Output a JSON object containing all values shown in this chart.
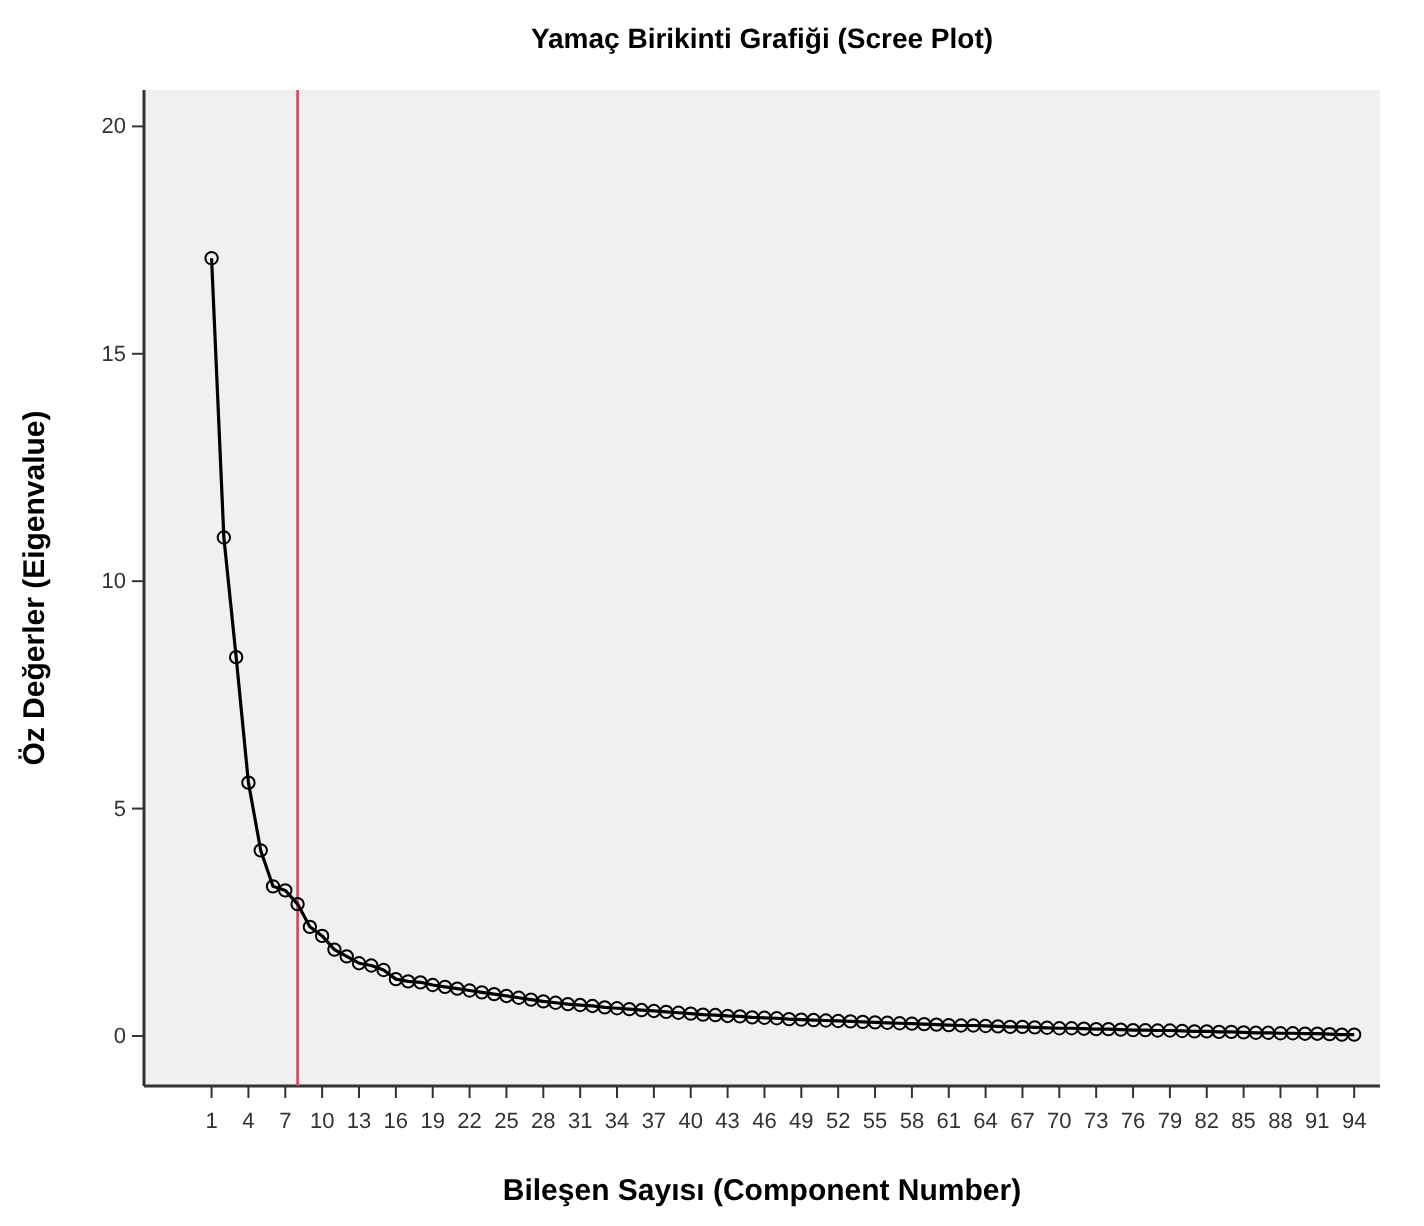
{
  "chart_data": {
    "type": "line",
    "title": "Yamaç Birikinti Grafiği (Scree Plot)",
    "xlabel": "Bileşen Sayısı (Component Number)",
    "ylabel": "Öz Değerler (Eigenvalue)",
    "x": [
      1,
      2,
      3,
      4,
      5,
      6,
      7,
      8,
      9,
      10,
      11,
      12,
      13,
      14,
      15,
      16,
      17,
      18,
      19,
      20,
      21,
      22,
      23,
      24,
      25,
      26,
      27,
      28,
      29,
      30,
      31,
      32,
      33,
      34,
      35,
      36,
      37,
      38,
      39,
      40,
      41,
      42,
      43,
      44,
      45,
      46,
      47,
      48,
      49,
      50,
      51,
      52,
      53,
      54,
      55,
      56,
      57,
      58,
      59,
      60,
      61,
      62,
      63,
      64,
      65,
      66,
      67,
      68,
      69,
      70,
      71,
      72,
      73,
      74,
      75,
      76,
      77,
      78,
      79,
      80,
      81,
      82,
      83,
      84,
      85,
      86,
      87,
      88,
      89,
      90,
      91,
      92,
      93,
      94
    ],
    "series": [
      {
        "color": "#000000",
        "values": [
          17.1,
          10.96,
          8.33,
          5.57,
          4.08,
          3.29,
          3.2,
          2.9,
          2.4,
          2.2,
          1.9,
          1.75,
          1.6,
          1.55,
          1.45,
          1.25,
          1.2,
          1.18,
          1.12,
          1.08,
          1.04,
          1.0,
          0.96,
          0.92,
          0.88,
          0.84,
          0.8,
          0.76,
          0.73,
          0.7,
          0.68,
          0.66,
          0.63,
          0.61,
          0.59,
          0.57,
          0.55,
          0.53,
          0.51,
          0.49,
          0.47,
          0.46,
          0.44,
          0.43,
          0.41,
          0.4,
          0.39,
          0.37,
          0.36,
          0.35,
          0.34,
          0.33,
          0.32,
          0.31,
          0.3,
          0.29,
          0.28,
          0.27,
          0.26,
          0.25,
          0.24,
          0.23,
          0.23,
          0.22,
          0.21,
          0.2,
          0.2,
          0.19,
          0.18,
          0.17,
          0.17,
          0.16,
          0.15,
          0.15,
          0.14,
          0.13,
          0.13,
          0.12,
          0.12,
          0.11,
          0.1,
          0.1,
          0.09,
          0.09,
          0.08,
          0.07,
          0.07,
          0.06,
          0.06,
          0.05,
          0.05,
          0.04,
          0.03,
          0.03
        ]
      }
    ],
    "xlim": [
      -4.5,
      96.1
    ],
    "xticks": [
      1,
      4,
      7,
      10,
      13,
      16,
      19,
      22,
      25,
      28,
      31,
      34,
      37,
      40,
      43,
      46,
      49,
      52,
      55,
      58,
      61,
      64,
      67,
      70,
      73,
      76,
      79,
      82,
      85,
      88,
      91,
      94
    ],
    "ylim": [
      -1.1,
      20.8
    ],
    "yticks": [
      0,
      5,
      10,
      15,
      20
    ],
    "ref_lines": [
      {
        "axis": "x",
        "value": 8,
        "color": "#d6455a"
      }
    ],
    "grid": false,
    "marker": "circle",
    "line_style": "solid"
  }
}
